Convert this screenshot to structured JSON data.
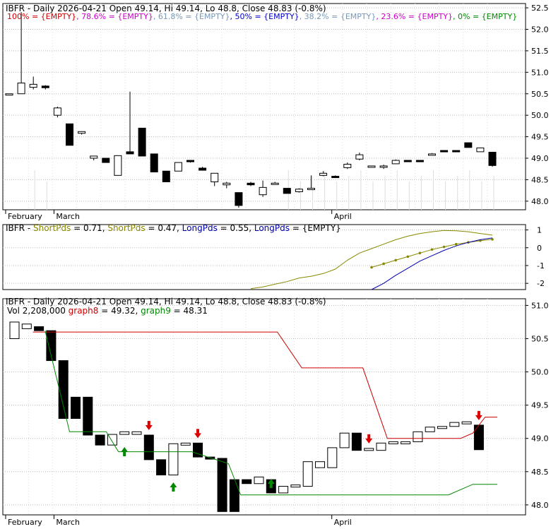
{
  "chart_data": [
    {
      "type": "candlestick",
      "panel": "price",
      "title": "IBFR - Daily 2026-04-21 Open 49.14, Hi 49.14, Lo 48.8, Close 48.83 (-0.8%)",
      "fib_legend": [
        {
          "text": "100% = {EMPTY}",
          "color": "#cc0000"
        },
        {
          "text": "78.6% = {EMPTY}",
          "color": "#cc00cc"
        },
        {
          "text": "61.8% = {EMPTY}",
          "color": "#7799bb"
        },
        {
          "text": "50% = {EMPTY}",
          "color": "#0000cc"
        },
        {
          "text": "38.2% = {EMPTY}",
          "color": "#7799bb"
        },
        {
          "text": "23.6% = {EMPTY}",
          "color": "#cc00cc"
        },
        {
          "text": "0% = {EMPTY}",
          "color": "#008800"
        }
      ],
      "x_labels": [
        "February",
        "March",
        "April"
      ],
      "y_ticks": [
        48.0,
        48.5,
        49.0,
        49.5,
        50.0,
        50.5,
        51.0,
        51.5,
        52.0,
        52.5
      ],
      "ylim": [
        47.8,
        52.6
      ],
      "candles": [
        {
          "o": 50.5,
          "h": 50.5,
          "l": 50.5,
          "c": 50.5
        },
        {
          "o": 50.5,
          "h": 52.4,
          "l": 50.5,
          "c": 50.75
        },
        {
          "o": 50.65,
          "h": 50.9,
          "l": 50.6,
          "c": 50.72
        },
        {
          "o": 50.68,
          "h": 50.7,
          "l": 50.6,
          "c": 50.64
        },
        {
          "o": 50.0,
          "h": 50.2,
          "l": 49.95,
          "c": 50.17
        },
        {
          "o": 49.8,
          "h": 49.8,
          "l": 49.3,
          "c": 49.3
        },
        {
          "o": 49.58,
          "h": 49.62,
          "l": 49.55,
          "c": 49.62
        },
        {
          "o": 49.0,
          "h": 49.05,
          "l": 48.95,
          "c": 49.05
        },
        {
          "o": 49.0,
          "h": 49.0,
          "l": 48.9,
          "c": 48.9
        },
        {
          "o": 48.6,
          "h": 49.06,
          "l": 48.6,
          "c": 49.06
        },
        {
          "o": 49.15,
          "h": 50.55,
          "l": 49.1,
          "c": 49.1
        },
        {
          "o": 49.7,
          "h": 49.7,
          "l": 49.05,
          "c": 49.05
        },
        {
          "o": 49.1,
          "h": 49.1,
          "l": 48.68,
          "c": 48.68
        },
        {
          "o": 48.7,
          "h": 48.7,
          "l": 48.45,
          "c": 48.45
        },
        {
          "o": 48.7,
          "h": 48.9,
          "l": 48.7,
          "c": 48.9
        },
        {
          "o": 48.95,
          "h": 48.95,
          "l": 48.9,
          "c": 48.92
        },
        {
          "o": 48.77,
          "h": 48.8,
          "l": 48.72,
          "c": 48.72
        },
        {
          "o": 48.45,
          "h": 48.65,
          "l": 48.35,
          "c": 48.65
        },
        {
          "o": 48.38,
          "h": 48.45,
          "l": 48.3,
          "c": 48.42
        },
        {
          "o": 48.2,
          "h": 48.2,
          "l": 47.85,
          "c": 47.9
        },
        {
          "o": 48.42,
          "h": 48.45,
          "l": 48.35,
          "c": 48.38
        },
        {
          "o": 48.15,
          "h": 48.48,
          "l": 48.1,
          "c": 48.32
        },
        {
          "o": 48.42,
          "h": 48.45,
          "l": 48.4,
          "c": 48.42
        },
        {
          "o": 48.3,
          "h": 48.3,
          "l": 48.18,
          "c": 48.18
        },
        {
          "o": 48.22,
          "h": 48.3,
          "l": 48.2,
          "c": 48.28
        },
        {
          "o": 48.28,
          "h": 48.6,
          "l": 48.28,
          "c": 48.3
        },
        {
          "o": 48.6,
          "h": 48.7,
          "l": 48.58,
          "c": 48.65
        },
        {
          "o": 48.58,
          "h": 48.6,
          "l": 48.55,
          "c": 48.56
        },
        {
          "o": 48.78,
          "h": 48.9,
          "l": 48.75,
          "c": 48.86
        },
        {
          "o": 48.98,
          "h": 49.13,
          "l": 48.95,
          "c": 49.08
        },
        {
          "o": 48.82,
          "h": 48.82,
          "l": 48.82,
          "c": 48.82
        },
        {
          "o": 48.8,
          "h": 48.85,
          "l": 48.75,
          "c": 48.82
        },
        {
          "o": 48.87,
          "h": 48.97,
          "l": 48.87,
          "c": 48.95
        },
        {
          "o": 48.95,
          "h": 48.95,
          "l": 48.92,
          "c": 48.93
        },
        {
          "o": 48.95,
          "h": 48.95,
          "l": 48.92,
          "c": 48.93
        },
        {
          "o": 49.1,
          "h": 49.12,
          "l": 49.08,
          "c": 49.1
        },
        {
          "o": 49.18,
          "h": 49.18,
          "l": 49.17,
          "c": 49.17
        },
        {
          "o": 49.18,
          "h": 49.18,
          "l": 49.16,
          "c": 49.16
        },
        {
          "o": 49.36,
          "h": 49.36,
          "l": 49.25,
          "c": 49.25
        },
        {
          "o": 49.15,
          "h": 49.24,
          "l": 49.15,
          "c": 49.24
        },
        {
          "o": 49.14,
          "h": 49.14,
          "l": 48.8,
          "c": 48.83
        }
      ],
      "spikes": [
        2,
        3,
        23,
        24,
        25,
        26,
        27,
        28,
        29,
        30,
        31,
        32,
        33,
        34,
        35,
        36,
        37,
        38,
        39,
        40
      ]
    },
    {
      "type": "line",
      "panel": "pds",
      "legend": [
        {
          "text": "IBFR - ",
          "color": "#000000"
        },
        {
          "text": "ShortPds",
          "color": "#888800"
        },
        {
          "text": " = 0.71, ",
          "color": "#000000"
        },
        {
          "text": "ShortPds",
          "color": "#888800"
        },
        {
          "text": " = 0.47, ",
          "color": "#000000"
        },
        {
          "text": "LongPds",
          "color": "#0000aa"
        },
        {
          "text": " = 0.55, ",
          "color": "#000000"
        },
        {
          "text": "LongPds",
          "color": "#0000aa"
        },
        {
          "text": " = {EMPTY}",
          "color": "#000000"
        }
      ],
      "y_ticks": [
        -2,
        -1,
        0,
        1
      ],
      "ylim": [
        -2.35,
        1.3
      ],
      "series": [
        {
          "color": "#888800",
          "style": "solid",
          "x": [
            20,
            21,
            22,
            23,
            24,
            25,
            26,
            27,
            28,
            29,
            30,
            31,
            32,
            33,
            34,
            35,
            36,
            37,
            38,
            39,
            40
          ],
          "values": [
            -2.3,
            -2.2,
            -2.05,
            -1.9,
            -1.7,
            -1.6,
            -1.45,
            -1.2,
            -0.7,
            -0.3,
            -0.05,
            0.2,
            0.45,
            0.65,
            0.8,
            0.9,
            0.97,
            0.95,
            0.9,
            0.8,
            0.71
          ]
        },
        {
          "color": "#888800",
          "style": "dotted",
          "x": [
            30,
            31,
            32,
            33,
            34,
            35,
            36,
            37,
            38,
            39,
            40
          ],
          "values": [
            -1.1,
            -0.9,
            -0.7,
            -0.5,
            -0.3,
            -0.1,
            0.05,
            0.2,
            0.3,
            0.4,
            0.47
          ]
        },
        {
          "color": "#0000aa",
          "style": "solid",
          "x": [
            30,
            31,
            32,
            33,
            34,
            35,
            36,
            37,
            38,
            39,
            40
          ],
          "values": [
            -2.35,
            -2.0,
            -1.55,
            -1.15,
            -0.75,
            -0.45,
            -0.15,
            0.1,
            0.3,
            0.45,
            0.55
          ]
        }
      ]
    },
    {
      "type": "candlestick",
      "panel": "lower",
      "title": "IBFR - Daily 2026-04-21 Open 49.14, Hi 49.14, Lo 48.8, Close 48.83 (-0.8%)",
      "subtitle": [
        {
          "text": "Vol 2,208,000 ",
          "color": "#000000"
        },
        {
          "text": "graph8",
          "color": "#cc0000"
        },
        {
          "text": " = 49.32, ",
          "color": "#000000"
        },
        {
          "text": "graph9",
          "color": "#008800"
        },
        {
          "text": " = 48.31",
          "color": "#000000"
        }
      ],
      "x_labels": [
        "February",
        "March",
        "April"
      ],
      "y_ticks": [
        48.0,
        48.5,
        49.0,
        49.5,
        50.0,
        50.5,
        51.0
      ],
      "ylim": [
        47.85,
        51.1
      ],
      "candles": [
        {
          "o": 50.5,
          "c": 50.75
        },
        {
          "o": 50.65,
          "c": 50.72
        },
        {
          "o": 50.68,
          "c": 50.62
        },
        {
          "o": 50.62,
          "c": 50.17
        },
        {
          "o": 50.17,
          "c": 49.3
        },
        {
          "o": 49.62,
          "c": 49.3
        },
        {
          "o": 49.62,
          "c": 49.05
        },
        {
          "o": 49.05,
          "c": 48.9
        },
        {
          "o": 48.9,
          "c": 49.06
        },
        {
          "o": 49.06,
          "c": 49.1
        },
        {
          "o": 49.06,
          "c": 49.1
        },
        {
          "o": 49.05,
          "c": 48.68
        },
        {
          "o": 48.68,
          "c": 48.45
        },
        {
          "o": 48.45,
          "c": 48.92
        },
        {
          "o": 48.92,
          "c": 48.93
        },
        {
          "o": 48.93,
          "c": 48.72
        },
        {
          "o": 48.72,
          "c": 48.7
        },
        {
          "o": 48.7,
          "c": 47.9
        },
        {
          "o": 48.38,
          "c": 47.9
        },
        {
          "o": 48.38,
          "c": 48.32
        },
        {
          "o": 48.32,
          "c": 48.42
        },
        {
          "o": 48.38,
          "c": 48.18
        },
        {
          "o": 48.18,
          "c": 48.28
        },
        {
          "o": 48.28,
          "c": 48.3
        },
        {
          "o": 48.28,
          "c": 48.65
        },
        {
          "o": 48.56,
          "c": 48.65
        },
        {
          "o": 48.56,
          "c": 48.86
        },
        {
          "o": 48.86,
          "c": 49.08
        },
        {
          "o": 49.08,
          "c": 48.82
        },
        {
          "o": 48.82,
          "c": 48.85
        },
        {
          "o": 48.82,
          "c": 48.93
        },
        {
          "o": 48.93,
          "c": 48.95
        },
        {
          "o": 48.93,
          "c": 48.95
        },
        {
          "o": 48.95,
          "c": 49.1
        },
        {
          "o": 49.1,
          "c": 49.17
        },
        {
          "o": 49.17,
          "c": 49.18
        },
        {
          "o": 49.18,
          "c": 49.24
        },
        {
          "o": 49.24,
          "c": 49.25
        },
        {
          "o": 49.2,
          "c": 48.83
        }
      ],
      "graph8": {
        "color": "#cc0000",
        "x": [
          2,
          22,
          24,
          29,
          31,
          32,
          33,
          37,
          38,
          39,
          40
        ],
        "values": [
          50.6,
          50.6,
          50.06,
          50.06,
          49.0,
          49.0,
          49.0,
          49.0,
          49.08,
          49.32,
          49.32
        ]
      },
      "graph9": {
        "color": "#008800",
        "x": [
          3,
          5,
          8,
          9,
          15,
          18,
          19,
          21,
          36,
          38,
          40
        ],
        "values": [
          50.62,
          49.1,
          49.1,
          48.8,
          48.8,
          48.62,
          48.15,
          48.15,
          48.15,
          48.31,
          48.31
        ]
      },
      "arrows": [
        {
          "i": 11,
          "dir": "up",
          "color": "#008800"
        },
        {
          "i": 13,
          "dir": "down",
          "color": "#dd0000"
        },
        {
          "i": 15,
          "dir": "up",
          "color": "#008800"
        },
        {
          "i": 17,
          "dir": "down",
          "color": "#dd0000"
        },
        {
          "i": 23,
          "dir": "up",
          "color": "#008800"
        },
        {
          "i": 31,
          "dir": "down",
          "color": "#dd0000"
        },
        {
          "i": 40,
          "dir": "down",
          "color": "#dd0000"
        }
      ]
    }
  ]
}
